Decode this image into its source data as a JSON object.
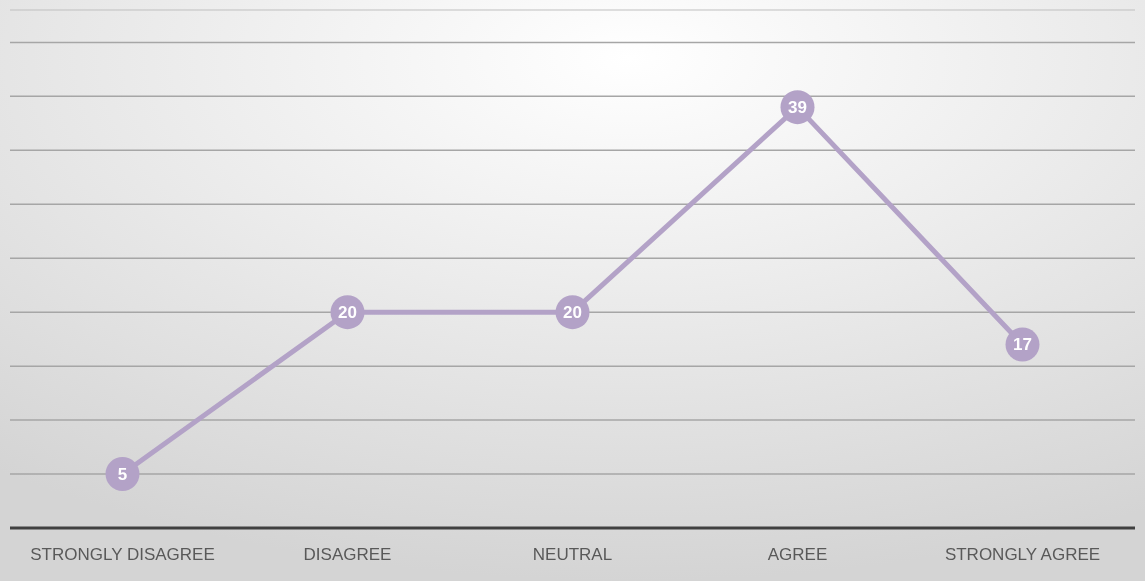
{
  "chart_data": {
    "type": "line",
    "categories": [
      "STRONGLY DISAGREE",
      "DISAGREE",
      "NEUTRAL",
      "AGREE",
      "STRONGLY AGREE"
    ],
    "series": [
      {
        "color": "#b3a2c7",
        "values": [
          5,
          20,
          20,
          39,
          17
        ]
      }
    ],
    "ylim": [
      0,
      48
    ],
    "yticks": [
      {
        "value": 0,
        "label": null
      },
      {
        "value": 5,
        "label": null
      },
      {
        "value": 10,
        "label": null
      },
      {
        "value": 15,
        "label": null
      },
      {
        "value": 20,
        "label": null
      },
      {
        "value": 25,
        "label": null
      },
      {
        "value": 30,
        "label": null
      },
      {
        "value": 35,
        "label": null
      },
      {
        "value": 40,
        "label": null
      },
      {
        "value": 45,
        "label": null
      }
    ],
    "tick_labels": "x",
    "grid": "y",
    "marker": "circle",
    "line_style": "solid",
    "data_labels": true
  }
}
